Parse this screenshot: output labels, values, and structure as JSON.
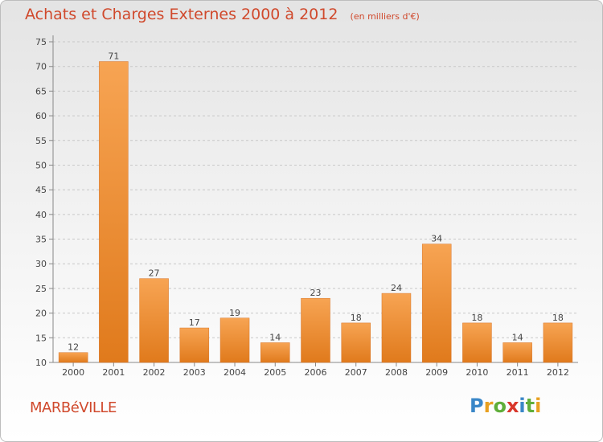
{
  "chart_data": {
    "type": "bar",
    "title": "Achats et Charges Externes 2000 à 2012",
    "subtitle": "(en milliers d'€)",
    "categories": [
      "2000",
      "2001",
      "2002",
      "2003",
      "2004",
      "2005",
      "2006",
      "2007",
      "2008",
      "2009",
      "2010",
      "2011",
      "2012"
    ],
    "values": [
      12,
      71,
      27,
      17,
      19,
      14,
      23,
      18,
      24,
      34,
      18,
      14,
      18
    ],
    "data_labels": [
      "12",
      "71",
      "27",
      "17",
      "19",
      "14",
      "23",
      "18",
      "24",
      "34",
      "18",
      "14",
      "18"
    ],
    "y_ticks": [
      "10",
      "15",
      "20",
      "25",
      "30",
      "35",
      "40",
      "45",
      "50",
      "55",
      "60",
      "65",
      "70",
      "75"
    ],
    "ylim": [
      10,
      75
    ],
    "grid": "horizontal dashed",
    "bar_color": "#f0923a"
  },
  "footer": {
    "city": "MARBéVILLE",
    "logo": {
      "text": "Proxiti",
      "letters": [
        "P",
        "r",
        "o",
        "x",
        "i",
        "t",
        "i"
      ],
      "colors": [
        "#3a87c8",
        "#e8a020",
        "#5fae3a",
        "#d9372b",
        "#3a87c8",
        "#5fae3a",
        "#e8a020"
      ]
    }
  }
}
